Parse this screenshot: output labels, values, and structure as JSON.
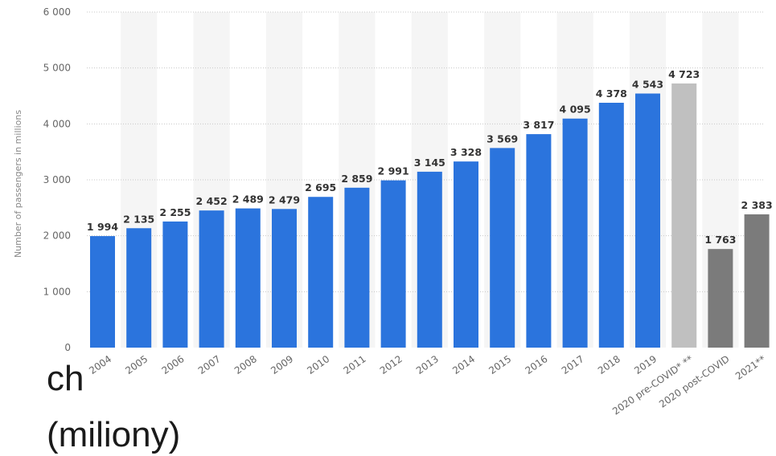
{
  "chart_data": {
    "type": "bar",
    "ylabel": "Number of passengers in millions",
    "ylim": [
      0,
      6000
    ],
    "yticks": [
      0,
      1000,
      2000,
      3000,
      4000,
      5000,
      6000
    ],
    "ytick_labels": [
      "0",
      "1 000",
      "2 000",
      "3 000",
      "4 000",
      "5 000",
      "6 000"
    ],
    "grid": true,
    "categories": [
      "2004",
      "2005",
      "2006",
      "2007",
      "2008",
      "2009",
      "2010",
      "2011",
      "2012",
      "2013",
      "2014",
      "2015",
      "2016",
      "2017",
      "2018",
      "2019",
      "2020 pre-COVID* **",
      "2020 post-COVID",
      "2021**"
    ],
    "values": [
      1994,
      2135,
      2255,
      2452,
      2489,
      2479,
      2695,
      2859,
      2991,
      3145,
      3328,
      3569,
      3817,
      4095,
      4378,
      4543,
      4723,
      1763,
      2383
    ],
    "value_labels": [
      "1 994",
      "2 135",
      "2 255",
      "2 452",
      "2 489",
      "2 479",
      "2 695",
      "2 859",
      "2 991",
      "3 145",
      "3 328",
      "3 569",
      "3 817",
      "4 095",
      "4 378",
      "4 543",
      "4 723",
      "1 763",
      "2 383"
    ],
    "bar_colors": [
      "#2b74dd",
      "#2b74dd",
      "#2b74dd",
      "#2b74dd",
      "#2b74dd",
      "#2b74dd",
      "#2b74dd",
      "#2b74dd",
      "#2b74dd",
      "#2b74dd",
      "#2b74dd",
      "#2b74dd",
      "#2b74dd",
      "#2b74dd",
      "#2b74dd",
      "#2b74dd",
      "#c0c0c0",
      "#7b7b7b",
      "#7b7b7b"
    ]
  },
  "overlay_text": {
    "line1": "ch",
    "line2": "(miliony)"
  }
}
